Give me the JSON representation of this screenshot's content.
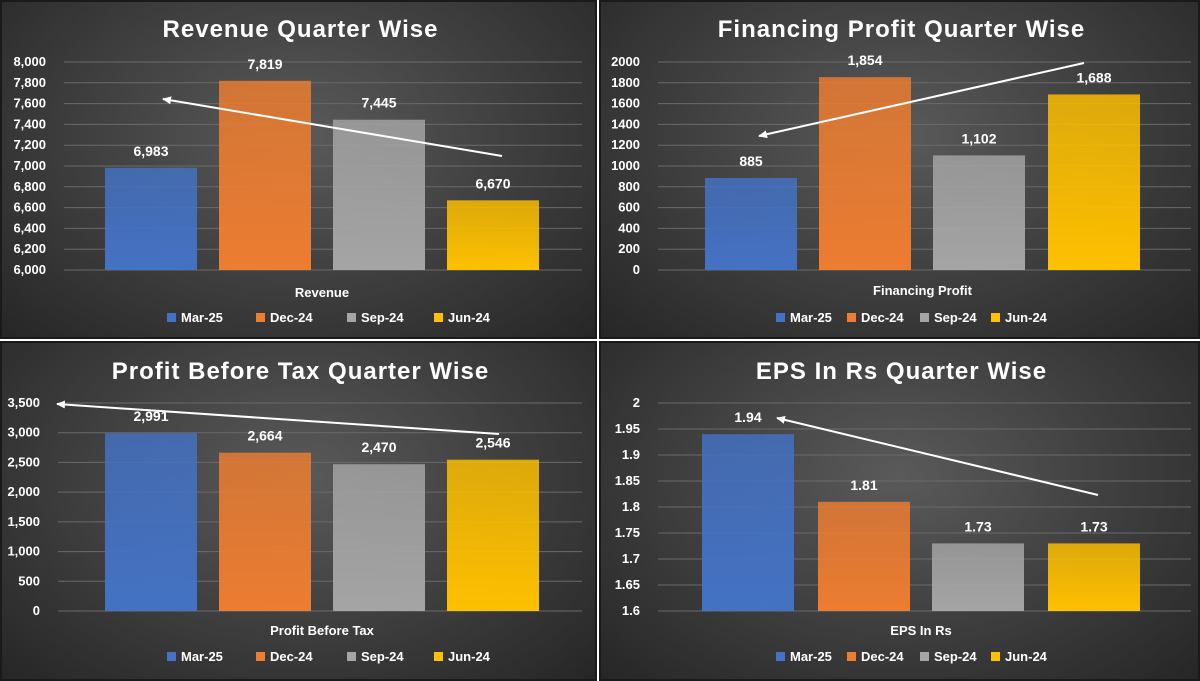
{
  "colors": {
    "Mar-25": "#4472C4",
    "Dec-24": "#ED7D31",
    "Sep-24": "#A5A5A5",
    "Jun-24": "#FFC000",
    "trend_arrow": "#ffffff"
  },
  "chart_data": [
    {
      "type": "bar",
      "title": "Revenue Quarter Wise",
      "xlabel": "Revenue",
      "categories": [
        "Revenue"
      ],
      "series": [
        {
          "name": "Mar-25",
          "values": [
            6983
          ]
        },
        {
          "name": "Dec-24",
          "values": [
            7819
          ]
        },
        {
          "name": "Sep-24",
          "values": [
            7445
          ]
        },
        {
          "name": "Jun-24",
          "values": [
            6670
          ]
        }
      ],
      "data_labels": [
        "6,983",
        "7,819",
        "7,445",
        "6,670"
      ],
      "ylim": [
        6000,
        8000
      ],
      "yticks": [
        "6,000",
        "6,200",
        "6,400",
        "6,600",
        "6,800",
        "7,000",
        "7,200",
        "7,400",
        "7,600",
        "7,800",
        "8,000"
      ],
      "grid": true,
      "legend": "bottom",
      "trend_arrow": "right-to-left"
    },
    {
      "type": "bar",
      "title": "Financing Profit Quarter Wise",
      "xlabel": "Financing Profit",
      "categories": [
        "Financing Profit"
      ],
      "series": [
        {
          "name": "Mar-25",
          "values": [
            885
          ]
        },
        {
          "name": "Dec-24",
          "values": [
            1854
          ]
        },
        {
          "name": "Sep-24",
          "values": [
            1102
          ]
        },
        {
          "name": "Jun-24",
          "values": [
            1688
          ]
        }
      ],
      "data_labels": [
        "885",
        "1,854",
        "1,102",
        "1,688"
      ],
      "ylim": [
        0,
        2000
      ],
      "yticks": [
        "0",
        "200",
        "400",
        "600",
        "800",
        "1000",
        "1200",
        "1400",
        "1600",
        "1800",
        "2000"
      ],
      "grid": true,
      "legend": "bottom",
      "trend_arrow": "right-to-left"
    },
    {
      "type": "bar",
      "title": "Profit Before Tax Quarter Wise",
      "xlabel": "Profit Before Tax",
      "categories": [
        "Profit Before Tax"
      ],
      "series": [
        {
          "name": "Mar-25",
          "values": [
            2991
          ]
        },
        {
          "name": "Dec-24",
          "values": [
            2664
          ]
        },
        {
          "name": "Sep-24",
          "values": [
            2470
          ]
        },
        {
          "name": "Jun-24",
          "values": [
            2546
          ]
        }
      ],
      "data_labels": [
        "2,991",
        "2,664",
        "2,470",
        "2,546"
      ],
      "ylim": [
        0,
        3500
      ],
      "yticks": [
        "0",
        "500",
        "1,000",
        "1,500",
        "2,000",
        "2,500",
        "3,000",
        "3,500"
      ],
      "grid": true,
      "legend": "bottom",
      "trend_arrow": "right-to-left"
    },
    {
      "type": "bar",
      "title": "EPS In Rs Quarter Wise",
      "xlabel": "EPS In Rs",
      "categories": [
        "EPS In Rs"
      ],
      "series": [
        {
          "name": "Mar-25",
          "values": [
            1.94
          ]
        },
        {
          "name": "Dec-24",
          "values": [
            1.81
          ]
        },
        {
          "name": "Sep-24",
          "values": [
            1.73
          ]
        },
        {
          "name": "Jun-24",
          "values": [
            1.73
          ]
        }
      ],
      "data_labels": [
        "1.94",
        "1.81",
        "1.73",
        "1.73"
      ],
      "ylim": [
        1.6,
        2.0
      ],
      "yticks": [
        "1.6",
        "1.65",
        "1.7",
        "1.75",
        "1.8",
        "1.85",
        "1.9",
        "1.95",
        "2"
      ],
      "grid": true,
      "legend": "bottom",
      "trend_arrow": "right-to-left"
    }
  ]
}
